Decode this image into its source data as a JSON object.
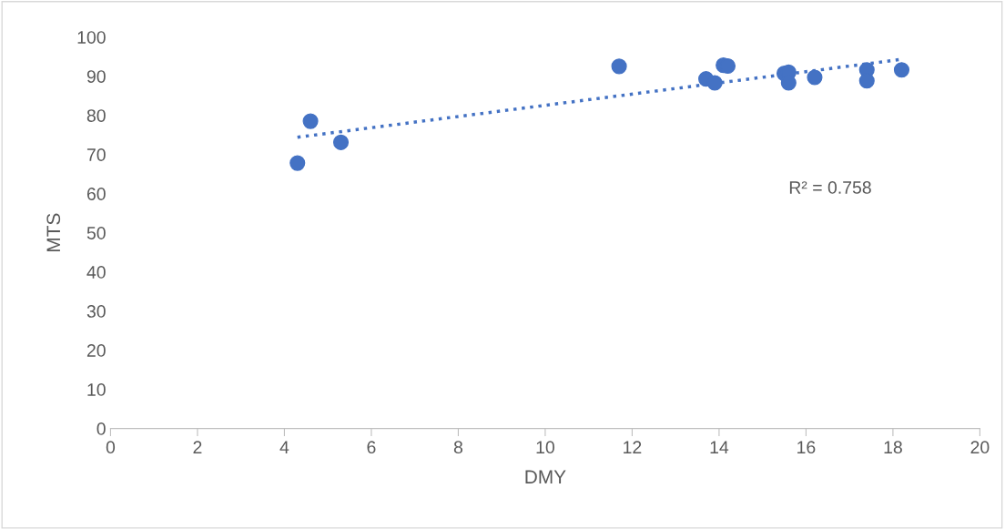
{
  "chart_data": {
    "type": "scatter",
    "xlabel": "DMY",
    "ylabel": "MTS",
    "xlim": [
      0,
      20
    ],
    "xticks": [
      0,
      2,
      4,
      6,
      8,
      10,
      12,
      14,
      16,
      18,
      20
    ],
    "ylim": [
      0,
      100
    ],
    "yticks": [
      0,
      10,
      20,
      30,
      40,
      50,
      60,
      70,
      80,
      90,
      100
    ],
    "grid": false,
    "legend": false,
    "marker": "circle",
    "series": [
      {
        "color": "#4472c4",
        "x": [
          4.3,
          4.6,
          5.3,
          11.7,
          13.7,
          13.9,
          14.1,
          14.2,
          15.5,
          15.6,
          15.6,
          16.2,
          17.4,
          17.4,
          18.2
        ],
        "values": [
          67.8,
          78.5,
          73.1,
          92.5,
          89.3,
          88.3,
          92.8,
          92.6,
          90.7,
          91.0,
          88.3,
          89.7,
          91.6,
          88.8,
          91.6
        ]
      },
      {
        "type": "line",
        "color": "#4472c4",
        "line_style": "dotted",
        "marker": "none",
        "x": [
          4.3,
          18.2
        ],
        "values": [
          74.4,
          94.3
        ]
      }
    ],
    "annotations": [
      "R² = 0.758"
    ]
  }
}
